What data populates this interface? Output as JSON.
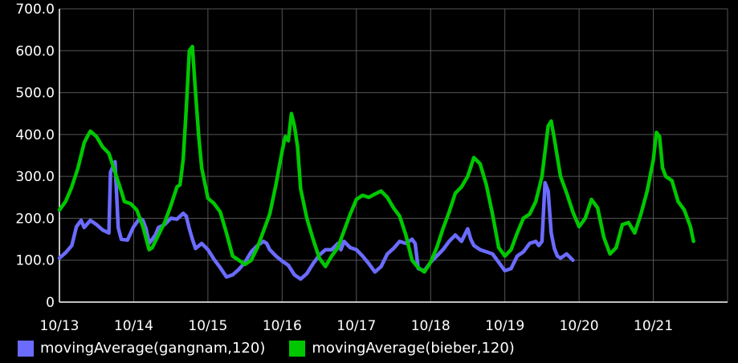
{
  "colors": {
    "background": "#000000",
    "grid": "#555555",
    "axis": "#ffffff",
    "gangnam": "#6b6bff",
    "bieber": "#00c800"
  },
  "chart_data": {
    "type": "line",
    "title": "",
    "xlabel": "",
    "ylabel": "",
    "ylim": [
      0,
      700
    ],
    "yticks": [
      "0",
      "100.0",
      "200.0",
      "300.0",
      "400.0",
      "500.0",
      "600.0",
      "700.0"
    ],
    "xlim": [
      "10/13",
      "10/22"
    ],
    "xticks": [
      "10/13",
      "10/14",
      "10/15",
      "10/16",
      "10/17",
      "10/18",
      "10/19",
      "10/20",
      "10/21"
    ],
    "grid": true,
    "legend_position": "bottom-left",
    "series": [
      {
        "name": "movingAverage(gangnam,120)",
        "color": "#6b6bff",
        "points": [
          [
            "10/13 00:00",
            105
          ],
          [
            "10/13 02:00",
            118
          ],
          [
            "10/13 04:00",
            135
          ],
          [
            "10/13 05:30",
            180
          ],
          [
            "10/13 07:00",
            195
          ],
          [
            "10/13 08:00",
            178
          ],
          [
            "10/13 10:00",
            195
          ],
          [
            "10/13 12:00",
            185
          ],
          [
            "10/13 14:00",
            172
          ],
          [
            "10/13 16:00",
            165
          ],
          [
            "10/13 16:30",
            310
          ],
          [
            "10/13 18:00",
            335
          ],
          [
            "10/13 19:00",
            178
          ],
          [
            "10/13 20:00",
            150
          ],
          [
            "10/13 22:00",
            148
          ],
          [
            "10/14 00:00",
            180
          ],
          [
            "10/14 02:00",
            200
          ],
          [
            "10/14 03:00",
            195
          ],
          [
            "10/14 04:00",
            175
          ],
          [
            "10/14 05:00",
            140
          ],
          [
            "10/14 06:00",
            150
          ],
          [
            "10/14 07:00",
            160
          ],
          [
            "10/14 08:00",
            178
          ],
          [
            "10/14 10:00",
            185
          ],
          [
            "10/14 12:00",
            200
          ],
          [
            "10/14 14:00",
            198
          ],
          [
            "10/14 16:00",
            212
          ],
          [
            "10/14 17:00",
            205
          ],
          [
            "10/14 18:00",
            175
          ],
          [
            "10/14 19:00",
            150
          ],
          [
            "10/14 20:00",
            128
          ],
          [
            "10/14 22:00",
            140
          ],
          [
            "10/15 00:00",
            125
          ],
          [
            "10/15 02:00",
            102
          ],
          [
            "10/15 04:00",
            82
          ],
          [
            "10/15 06:00",
            60
          ],
          [
            "10/15 08:00",
            65
          ],
          [
            "10/15 10:00",
            78
          ],
          [
            "10/15 12:00",
            95
          ],
          [
            "10/15 14:00",
            120
          ],
          [
            "10/15 16:00",
            135
          ],
          [
            "10/15 18:00",
            145
          ],
          [
            "10/15 19:00",
            140
          ],
          [
            "10/15 20:00",
            125
          ],
          [
            "10/15 22:00",
            110
          ],
          [
            "10/16 00:00",
            98
          ],
          [
            "10/16 02:00",
            88
          ],
          [
            "10/16 04:00",
            65
          ],
          [
            "10/16 06:00",
            55
          ],
          [
            "10/16 08:00",
            68
          ],
          [
            "10/16 10:00",
            92
          ],
          [
            "10/16 12:00",
            112
          ],
          [
            "10/16 14:00",
            125
          ],
          [
            "10/16 16:00",
            125
          ],
          [
            "10/16 18:00",
            140
          ],
          [
            "10/16 19:00",
            125
          ],
          [
            "10/16 20:00",
            145
          ],
          [
            "10/16 22:00",
            130
          ],
          [
            "10/17 00:00",
            125
          ],
          [
            "10/17 02:00",
            110
          ],
          [
            "10/17 04:00",
            92
          ],
          [
            "10/17 06:00",
            72
          ],
          [
            "10/17 08:00",
            85
          ],
          [
            "10/17 10:00",
            115
          ],
          [
            "10/17 12:00",
            128
          ],
          [
            "10/17 14:00",
            145
          ],
          [
            "10/17 16:00",
            140
          ],
          [
            "10/17 18:00",
            150
          ],
          [
            "10/17 19:00",
            140
          ],
          [
            "10/17 20:00",
            80
          ],
          [
            "10/17 22:00",
            75
          ],
          [
            "10/18 00:00",
            95
          ],
          [
            "10/18 02:00",
            110
          ],
          [
            "10/18 04:00",
            125
          ],
          [
            "10/18 06:00",
            145
          ],
          [
            "10/18 08:00",
            160
          ],
          [
            "10/18 10:00",
            145
          ],
          [
            "10/18 12:00",
            175
          ],
          [
            "10/18 13:00",
            150
          ],
          [
            "10/18 14:00",
            135
          ],
          [
            "10/18 16:00",
            125
          ],
          [
            "10/18 18:00",
            120
          ],
          [
            "10/18 20:00",
            115
          ],
          [
            "10/18 22:00",
            95
          ],
          [
            "10/19 00:00",
            75
          ],
          [
            "10/19 02:00",
            80
          ],
          [
            "10/19 04:00",
            110
          ],
          [
            "10/19 06:00",
            120
          ],
          [
            "10/19 08:00",
            140
          ],
          [
            "10/19 10:00",
            145
          ],
          [
            "10/19 11:00",
            135
          ],
          [
            "10/19 12:00",
            145
          ],
          [
            "10/19 13:00",
            285
          ],
          [
            "10/19 14:00",
            265
          ],
          [
            "10/19 15:00",
            165
          ],
          [
            "10/19 16:00",
            128
          ],
          [
            "10/19 17:00",
            110
          ],
          [
            "10/19 18:00",
            105
          ],
          [
            "10/19 20:00",
            115
          ],
          [
            "10/19 22:00",
            100
          ]
        ]
      },
      {
        "name": "movingAverage(bieber,120)",
        "color": "#00c800",
        "points": [
          [
            "10/13 00:00",
            220
          ],
          [
            "10/13 02:00",
            240
          ],
          [
            "10/13 04:00",
            275
          ],
          [
            "10/13 06:00",
            320
          ],
          [
            "10/13 08:00",
            380
          ],
          [
            "10/13 09:00",
            395
          ],
          [
            "10/13 10:00",
            408
          ],
          [
            "10/13 12:00",
            395
          ],
          [
            "10/13 14:00",
            370
          ],
          [
            "10/13 16:00",
            355
          ],
          [
            "10/13 18:00",
            310
          ],
          [
            "10/13 20:00",
            265
          ],
          [
            "10/13 21:00",
            240
          ],
          [
            "10/13 23:00",
            235
          ],
          [
            "10/14 01:00",
            220
          ],
          [
            "10/14 03:00",
            180
          ],
          [
            "10/14 05:00",
            125
          ],
          [
            "10/14 06:00",
            130
          ],
          [
            "10/14 08:00",
            160
          ],
          [
            "10/14 10:00",
            190
          ],
          [
            "10/14 12:00",
            230
          ],
          [
            "10/14 14:00",
            275
          ],
          [
            "10/14 15:00",
            280
          ],
          [
            "10/14 16:00",
            340
          ],
          [
            "10/14 17:00",
            460
          ],
          [
            "10/14 18:00",
            600
          ],
          [
            "10/14 19:00",
            610
          ],
          [
            "10/14 20:00",
            500
          ],
          [
            "10/14 21:00",
            400
          ],
          [
            "10/14 22:00",
            320
          ],
          [
            "10/15 00:00",
            248
          ],
          [
            "10/15 02:00",
            235
          ],
          [
            "10/15 04:00",
            215
          ],
          [
            "10/15 06:00",
            165
          ],
          [
            "10/15 08:00",
            110
          ],
          [
            "10/15 10:00",
            100
          ],
          [
            "10/15 12:00",
            90
          ],
          [
            "10/15 14:00",
            100
          ],
          [
            "10/15 16:00",
            130
          ],
          [
            "10/15 18:00",
            170
          ],
          [
            "10/15 20:00",
            210
          ],
          [
            "10/15 22:00",
            280
          ],
          [
            "10/16 00:00",
            360
          ],
          [
            "10/16 01:00",
            395
          ],
          [
            "10/16 02:00",
            385
          ],
          [
            "10/16 03:00",
            450
          ],
          [
            "10/16 04:00",
            420
          ],
          [
            "10/16 05:00",
            370
          ],
          [
            "10/16 06:00",
            270
          ],
          [
            "10/16 08:00",
            200
          ],
          [
            "10/16 10:00",
            150
          ],
          [
            "10/16 12:00",
            105
          ],
          [
            "10/16 14:00",
            85
          ],
          [
            "10/16 16:00",
            110
          ],
          [
            "10/16 18:00",
            130
          ],
          [
            "10/16 20:00",
            170
          ],
          [
            "10/16 22:00",
            210
          ],
          [
            "10/17 00:00",
            245
          ],
          [
            "10/17 02:00",
            255
          ],
          [
            "10/17 04:00",
            250
          ],
          [
            "10/17 06:00",
            258
          ],
          [
            "10/17 08:00",
            265
          ],
          [
            "10/17 10:00",
            250
          ],
          [
            "10/17 12:00",
            225
          ],
          [
            "10/17 14:00",
            205
          ],
          [
            "10/17 16:00",
            160
          ],
          [
            "10/17 18:00",
            100
          ],
          [
            "10/17 20:00",
            82
          ],
          [
            "10/17 22:00",
            72
          ],
          [
            "10/18 00:00",
            95
          ],
          [
            "10/18 02:00",
            130
          ],
          [
            "10/18 04:00",
            175
          ],
          [
            "10/18 06:00",
            215
          ],
          [
            "10/18 08:00",
            260
          ],
          [
            "10/18 10:00",
            275
          ],
          [
            "10/18 12:00",
            300
          ],
          [
            "10/18 14:00",
            345
          ],
          [
            "10/18 16:00",
            330
          ],
          [
            "10/18 18:00",
            280
          ],
          [
            "10/18 20:00",
            210
          ],
          [
            "10/18 22:00",
            130
          ],
          [
            "10/19 00:00",
            110
          ],
          [
            "10/19 02:00",
            125
          ],
          [
            "10/19 04:00",
            165
          ],
          [
            "10/19 06:00",
            200
          ],
          [
            "10/19 08:00",
            210
          ],
          [
            "10/19 10:00",
            240
          ],
          [
            "10/19 12:00",
            300
          ],
          [
            "10/19 14:00",
            420
          ],
          [
            "10/19 15:00",
            432
          ],
          [
            "10/19 16:00",
            390
          ],
          [
            "10/19 18:00",
            300
          ],
          [
            "10/19 20:00",
            260
          ],
          [
            "10/19 22:00",
            215
          ],
          [
            "10/20 00:00",
            180
          ],
          [
            "10/20 02:00",
            200
          ],
          [
            "10/20 04:00",
            245
          ],
          [
            "10/20 06:00",
            225
          ],
          [
            "10/20 08:00",
            155
          ],
          [
            "10/20 10:00",
            115
          ],
          [
            "10/20 12:00",
            130
          ],
          [
            "10/20 14:00",
            185
          ],
          [
            "10/20 16:00",
            190
          ],
          [
            "10/20 18:00",
            165
          ],
          [
            "10/20 20:00",
            210
          ],
          [
            "10/20 22:00",
            265
          ],
          [
            "10/21 00:00",
            340
          ],
          [
            "10/21 01:00",
            405
          ],
          [
            "10/21 02:00",
            395
          ],
          [
            "10/21 03:00",
            320
          ],
          [
            "10/21 04:00",
            300
          ],
          [
            "10/21 06:00",
            290
          ],
          [
            "10/21 08:00",
            240
          ],
          [
            "10/21 10:00",
            220
          ],
          [
            "10/21 12:00",
            180
          ],
          [
            "10/21 13:00",
            145
          ]
        ]
      }
    ]
  }
}
